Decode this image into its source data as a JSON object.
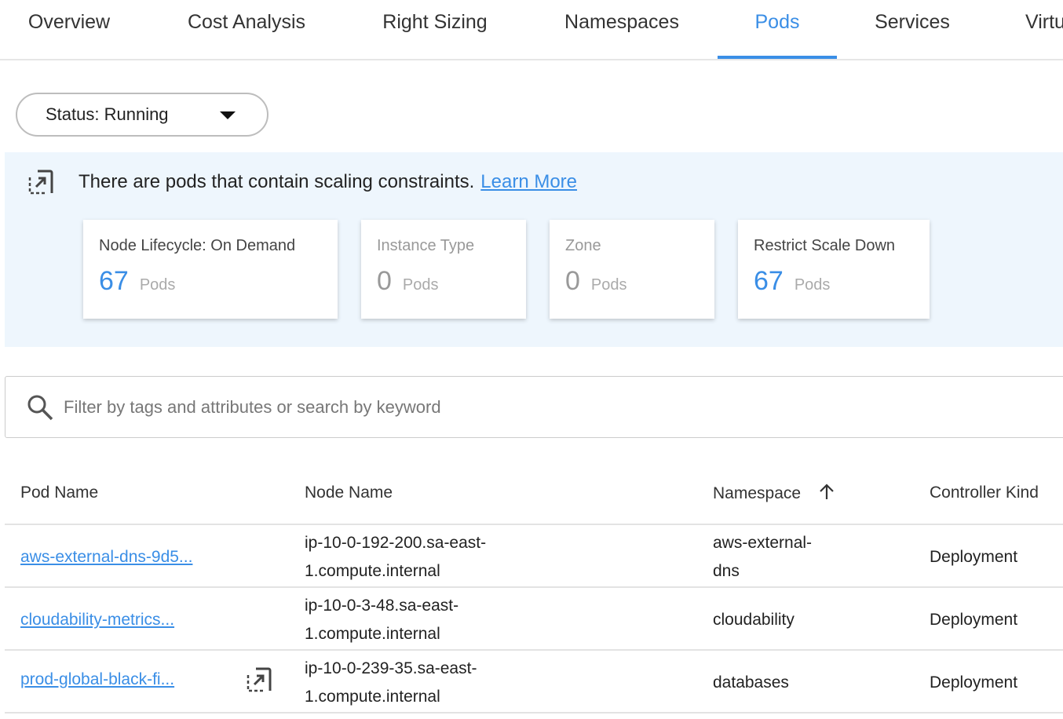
{
  "tabs": [
    {
      "label": "Overview"
    },
    {
      "label": "Cost Analysis"
    },
    {
      "label": "Right Sizing"
    },
    {
      "label": "Namespaces"
    },
    {
      "label": "Pods",
      "active": true
    },
    {
      "label": "Services"
    },
    {
      "label": "Virtu"
    }
  ],
  "filter": {
    "status_label": "Status: Running"
  },
  "banner": {
    "icon": "external-link-icon",
    "message": "There are pods that contain scaling constraints.",
    "link": "Learn More",
    "cards": [
      {
        "title": "Node Lifecycle: On Demand",
        "value": "67",
        "unit": "Pods"
      },
      {
        "title": "Instance Type",
        "value": "0",
        "unit": "Pods"
      },
      {
        "title": "Zone",
        "value": "0",
        "unit": "Pods"
      },
      {
        "title": "Restrict Scale Down",
        "value": "67",
        "unit": "Pods"
      }
    ]
  },
  "search": {
    "placeholder": "Filter by tags and attributes or search by keyword",
    "value": ""
  },
  "table": {
    "headers": [
      "Pod Name",
      "Node Name",
      "Namespace",
      "Controller Kind"
    ],
    "sort": {
      "column": "Namespace",
      "direction": "ascending"
    },
    "rows": [
      {
        "pod": "aws-external-dns-9d5...",
        "node1": "ip-10-0-192-200.sa-east-",
        "node2": "1.compute.internal",
        "ns1": "aws-external-",
        "ns2": "dns",
        "kind": "Deployment"
      },
      {
        "pod": "cloudability-metrics...",
        "node1": "ip-10-0-3-48.sa-east-",
        "node2": "1.compute.internal",
        "ns1": "cloudability",
        "ns2": "",
        "kind": "Deployment"
      },
      {
        "pod": "prod-global-black-fi...",
        "node1": "ip-10-0-239-35.sa-east-",
        "node2": "1.compute.internal",
        "ns1": "databases",
        "ns2": "",
        "kind": "Deployment",
        "has_constraint_icon": true
      }
    ]
  },
  "colors": {
    "accent": "#3a8ee6",
    "banner_bg": "#eef6fd"
  }
}
